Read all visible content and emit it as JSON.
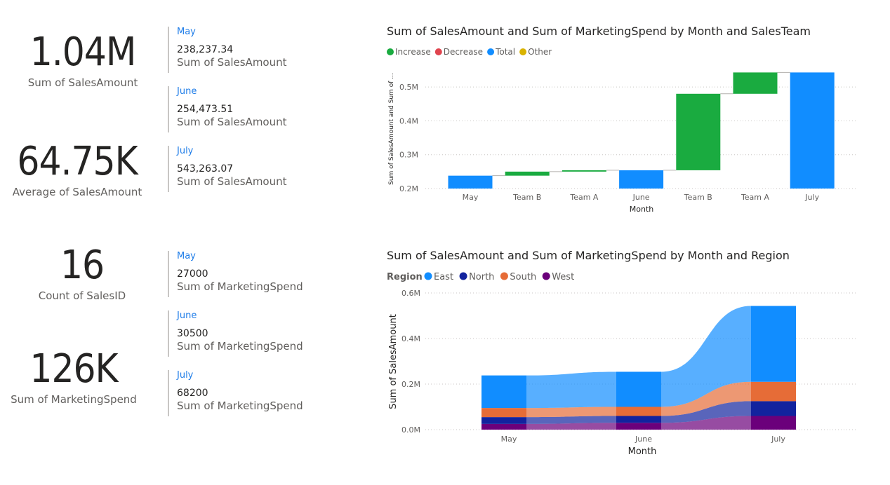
{
  "cards": [
    {
      "value": "1.04M",
      "label": "Sum of SalesAmount"
    },
    {
      "value": "64.75K",
      "label": "Average of SalesAmount"
    },
    {
      "value": "16",
      "label": "Count of SalesID"
    },
    {
      "value": "126K",
      "label": "Sum of MarketingSpend"
    }
  ],
  "sales_rows": [
    {
      "month": "May",
      "value": "238,237.34",
      "label": "Sum of SalesAmount"
    },
    {
      "month": "June",
      "value": "254,473.51",
      "label": "Sum of SalesAmount"
    },
    {
      "month": "July",
      "value": "543,263.07",
      "label": "Sum of SalesAmount"
    }
  ],
  "spend_rows": [
    {
      "month": "May",
      "value": "27000",
      "label": "Sum of MarketingSpend"
    },
    {
      "month": "June",
      "value": "30500",
      "label": "Sum of MarketingSpend"
    },
    {
      "month": "July",
      "value": "68200",
      "label": "Sum of MarketingSpend"
    }
  ],
  "chart_data": [
    {
      "type": "bar",
      "subtype": "waterfall",
      "title": "Sum of SalesAmount and Sum of MarketingSpend by Month and SalesTeam",
      "xlabel": "Month",
      "ylabel": "Sum of SalesAmount and Sum of ...",
      "ylim": [
        0.2,
        0.55
      ],
      "yticks": [
        "0.2M",
        "0.3M",
        "0.4M",
        "0.5M"
      ],
      "ytick_values": [
        0.2,
        0.3,
        0.4,
        0.5
      ],
      "legend": [
        {
          "name": "Increase",
          "color": "#1aab40"
        },
        {
          "name": "Decrease",
          "color": "#e0444e"
        },
        {
          "name": "Total",
          "color": "#118dff"
        },
        {
          "name": "Other",
          "color": "#d9b300"
        }
      ],
      "categories": [
        "May",
        "Team B",
        "Team A",
        "June",
        "Team B",
        "Team A",
        "July"
      ],
      "bars": [
        {
          "kind": "Total",
          "start": 0.2,
          "end": 0.238
        },
        {
          "kind": "Increase",
          "start": 0.238,
          "end": 0.25
        },
        {
          "kind": "Increase",
          "start": 0.25,
          "end": 0.254
        },
        {
          "kind": "Total",
          "start": 0.2,
          "end": 0.254
        },
        {
          "kind": "Increase",
          "start": 0.254,
          "end": 0.48
        },
        {
          "kind": "Increase",
          "start": 0.48,
          "end": 0.543
        },
        {
          "kind": "Total",
          "start": 0.2,
          "end": 0.543
        }
      ]
    },
    {
      "type": "bar",
      "subtype": "ribbon",
      "title": "Sum of SalesAmount and Sum of MarketingSpend by Month and Region",
      "legend_title": "Region",
      "xlabel": "Month",
      "ylabel": "Sum of SalesAmount",
      "ylim": [
        0,
        0.6
      ],
      "yticks": [
        "0.0M",
        "0.2M",
        "0.4M",
        "0.6M"
      ],
      "ytick_values": [
        0,
        0.2,
        0.4,
        0.6
      ],
      "categories": [
        "May",
        "June",
        "July"
      ],
      "series": [
        {
          "name": "West",
          "color": "#6b007b",
          "values": [
            0.025,
            0.03,
            0.06
          ]
        },
        {
          "name": "North",
          "color": "#12239e",
          "values": [
            0.03,
            0.03,
            0.065
          ]
        },
        {
          "name": "South",
          "color": "#e66c37",
          "values": [
            0.04,
            0.04,
            0.085
          ]
        },
        {
          "name": "East",
          "color": "#118dff",
          "values": [
            0.143,
            0.154,
            0.333
          ]
        }
      ]
    }
  ]
}
